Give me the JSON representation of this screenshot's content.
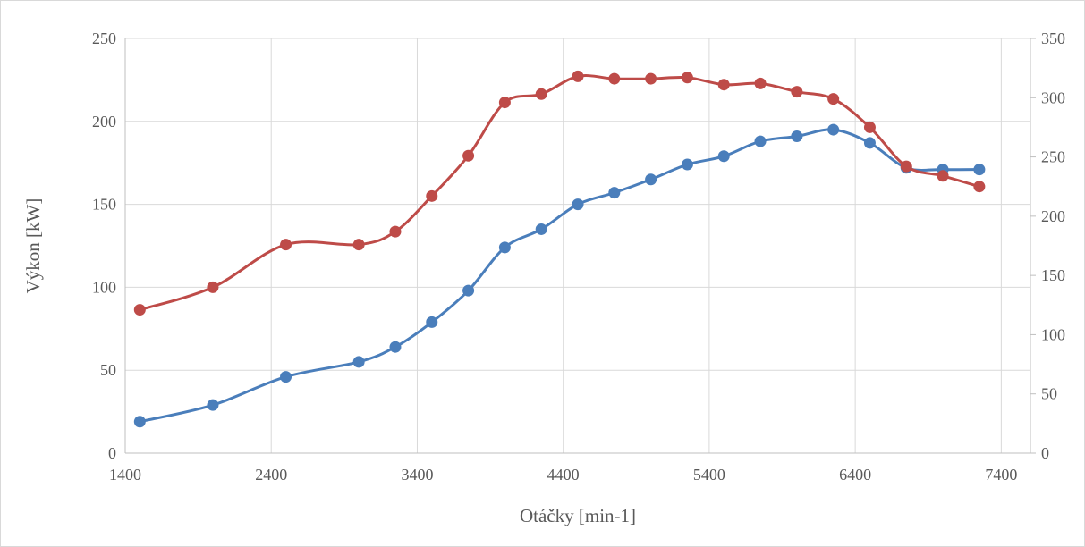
{
  "chart_data": {
    "type": "line",
    "title": "",
    "xlabel": "Otáčky [min-1]",
    "ylabel": "Výkon [kW]",
    "y2label": "",
    "xlim": [
      1400,
      7600
    ],
    "ylim": [
      0,
      250
    ],
    "y2lim": [
      0,
      350
    ],
    "x_ticks": [
      1400,
      2400,
      3400,
      4400,
      5400,
      6400,
      7400
    ],
    "y_ticks": [
      0,
      50,
      100,
      150,
      200,
      250
    ],
    "y2_ticks": [
      0,
      50,
      100,
      150,
      200,
      250,
      300,
      350
    ],
    "grid": true,
    "legend": "none",
    "series": [
      {
        "axis": "left",
        "color": "#4a7ebb",
        "x": [
          1500,
          2000,
          2500,
          3000,
          3250,
          3500,
          3750,
          4000,
          4250,
          4500,
          4750,
          5000,
          5250,
          5500,
          5750,
          6000,
          6250,
          6500,
          6750,
          7000,
          7250
        ],
        "values": [
          19,
          29,
          46,
          55,
          64,
          79,
          98,
          124,
          135,
          150,
          157,
          165,
          174,
          179,
          188,
          191,
          195,
          187,
          172,
          171,
          171
        ]
      },
      {
        "axis": "right",
        "color": "#be4b48",
        "x": [
          1500,
          2000,
          2500,
          3000,
          3250,
          3500,
          3750,
          4000,
          4250,
          4500,
          4750,
          5000,
          5250,
          5500,
          5750,
          6000,
          6250,
          6500,
          6750,
          7000,
          7250
        ],
        "values": [
          121,
          140,
          176,
          176,
          187,
          217,
          251,
          296,
          303,
          318,
          316,
          316,
          317,
          311,
          312,
          305,
          299,
          275,
          242,
          234,
          225
        ]
      }
    ]
  }
}
